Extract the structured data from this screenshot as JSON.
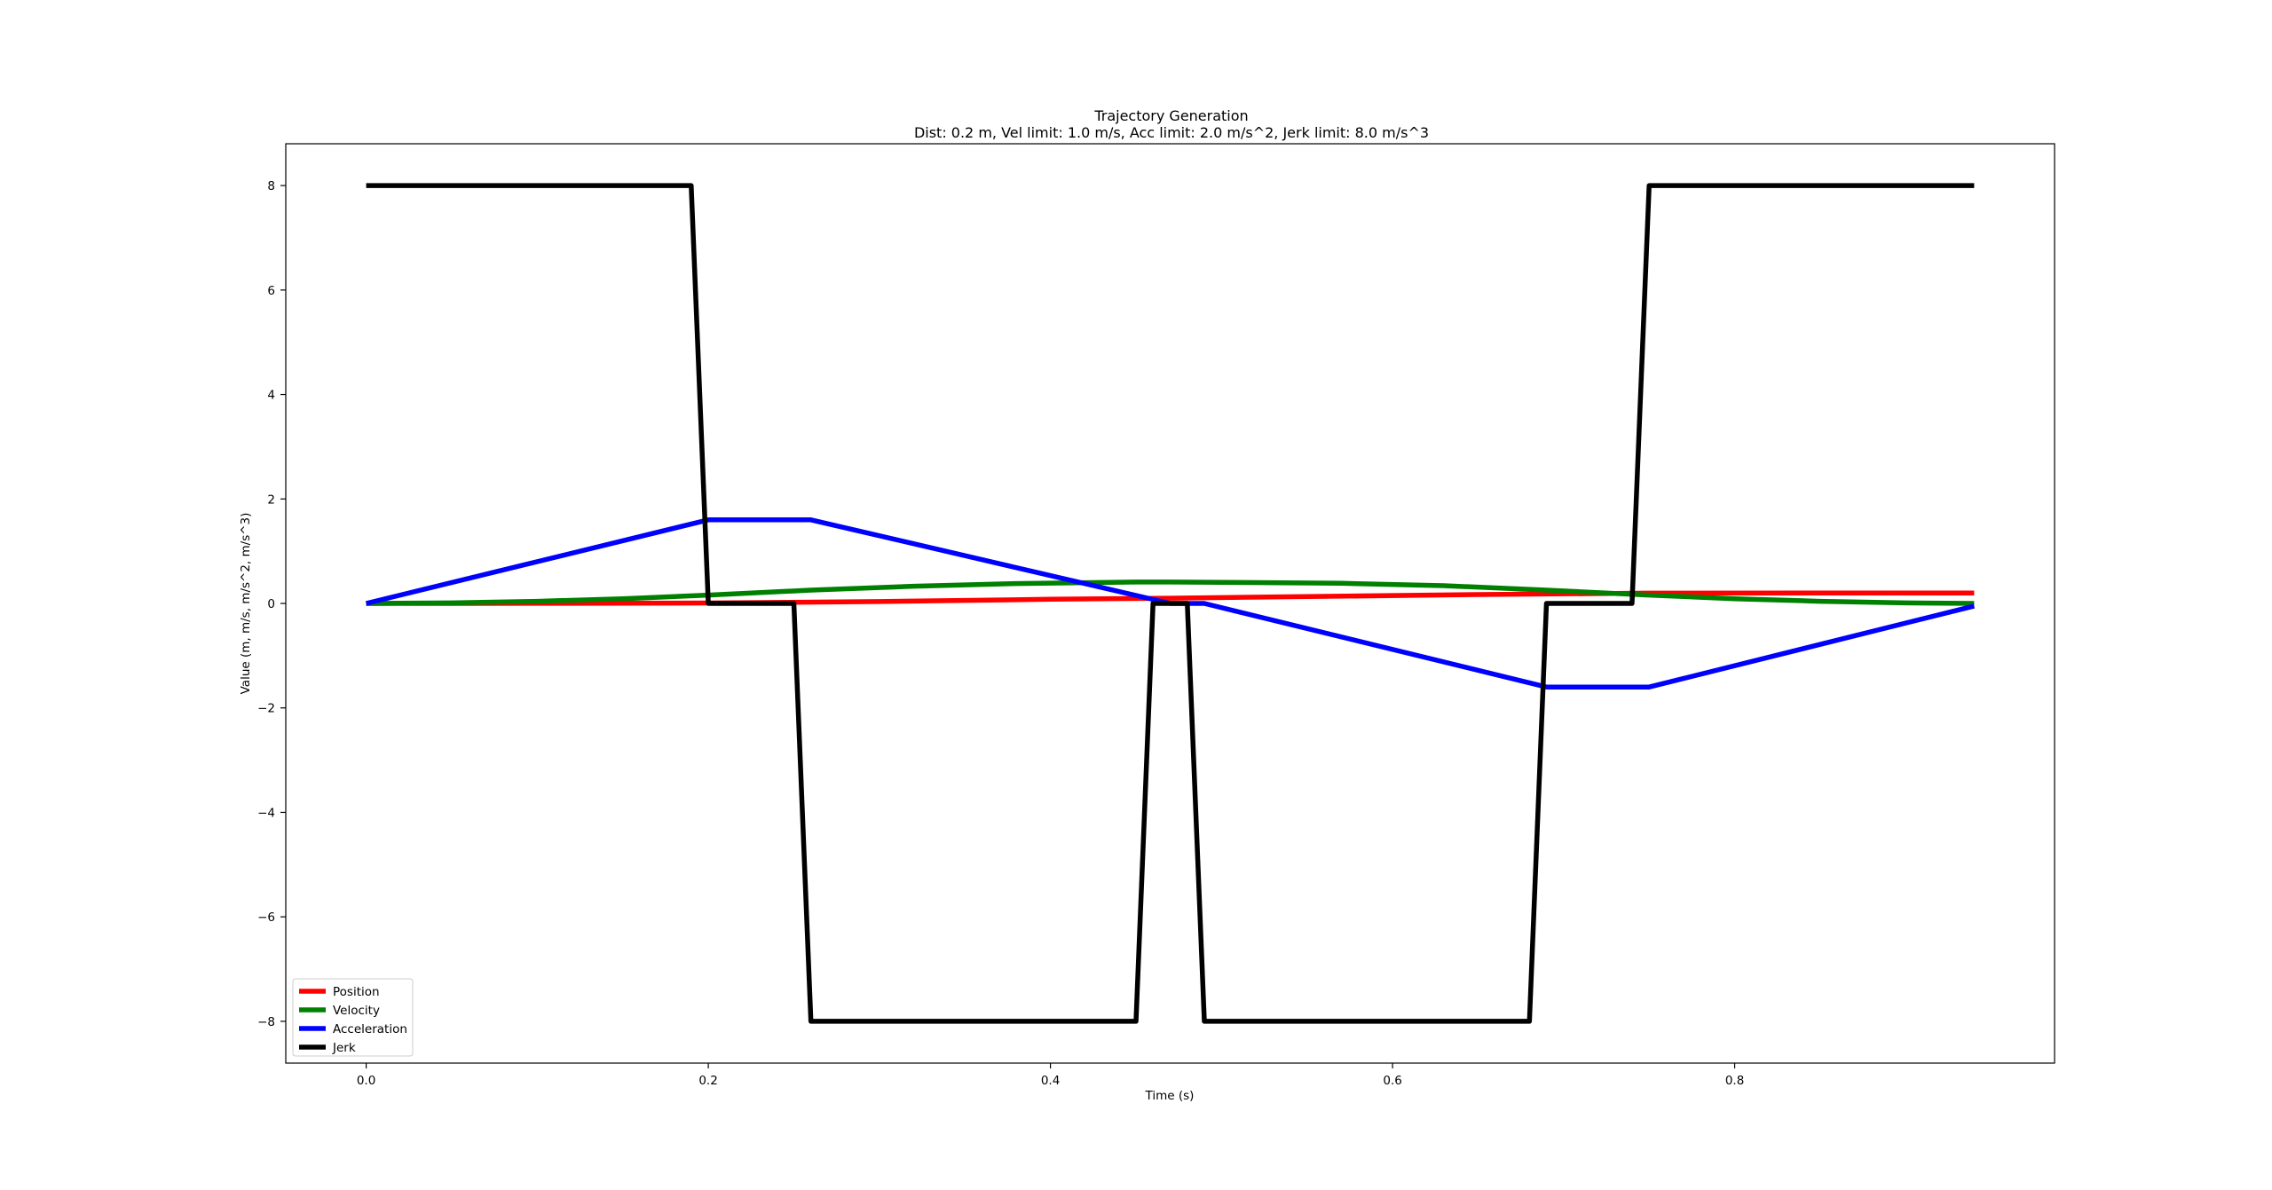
{
  "chart_data": {
    "type": "line",
    "title": "Trajectory Generation",
    "subtitle": "Dist: 0.2 m, Vel limit: 1.0 m/s, Acc limit: 2.0 m/s^2, Jerk limit: 8.0 m/s^3",
    "xlabel": "Time (s)",
    "ylabel": "Value (m, m/s, m/s^2, m/s^3)",
    "xlim": [
      -0.047,
      0.987
    ],
    "ylim": [
      -8.8,
      8.8
    ],
    "xticks": [
      0.0,
      0.2,
      0.4,
      0.6,
      0.8
    ],
    "xtick_labels": [
      "0.0",
      "0.2",
      "0.4",
      "0.6",
      "0.8"
    ],
    "yticks": [
      8,
      6,
      4,
      2,
      0,
      -2,
      -4,
      -6,
      -8
    ],
    "ytick_labels": [
      "8",
      "6",
      "4",
      "2",
      "0",
      "−2",
      "−4",
      "−6",
      "−8"
    ],
    "grid": false,
    "legend_position": "lower-left",
    "series": [
      {
        "name": "Position",
        "color": "#ff0000",
        "x": [
          0.0,
          0.1,
          0.2,
          0.3,
          0.4,
          0.47,
          0.55,
          0.65,
          0.75,
          0.85,
          0.94
        ],
        "y": [
          0.0,
          0.001,
          0.008,
          0.035,
          0.08,
          0.1,
          0.13,
          0.17,
          0.197,
          0.2,
          0.2
        ]
      },
      {
        "name": "Velocity",
        "color": "#008000",
        "x": [
          0.0,
          0.05,
          0.1,
          0.15,
          0.2,
          0.26,
          0.32,
          0.38,
          0.45,
          0.47,
          0.5,
          0.57,
          0.63,
          0.69,
          0.75,
          0.8,
          0.85,
          0.9,
          0.94
        ],
        "y": [
          0.0,
          0.01,
          0.04,
          0.09,
          0.16,
          0.255,
          0.33,
          0.38,
          0.41,
          0.41,
          0.405,
          0.385,
          0.34,
          0.255,
          0.16,
          0.09,
          0.04,
          0.01,
          0.0
        ]
      },
      {
        "name": "Acceleration",
        "color": "#0000ff",
        "x": [
          0.0,
          0.2,
          0.26,
          0.47,
          0.49,
          0.69,
          0.75,
          0.94
        ],
        "y": [
          0.0,
          1.6,
          1.6,
          0.0,
          0.0,
          -1.6,
          -1.6,
          -0.05
        ]
      },
      {
        "name": "Jerk",
        "color": "#000000",
        "x": [
          0.0,
          0.19,
          0.2,
          0.25,
          0.26,
          0.45,
          0.46,
          0.48,
          0.49,
          0.68,
          0.69,
          0.74,
          0.75,
          0.94
        ],
        "y": [
          8,
          8,
          0,
          0,
          -8,
          -8,
          0,
          0,
          -8,
          -8,
          0,
          0,
          8,
          8
        ]
      }
    ]
  }
}
